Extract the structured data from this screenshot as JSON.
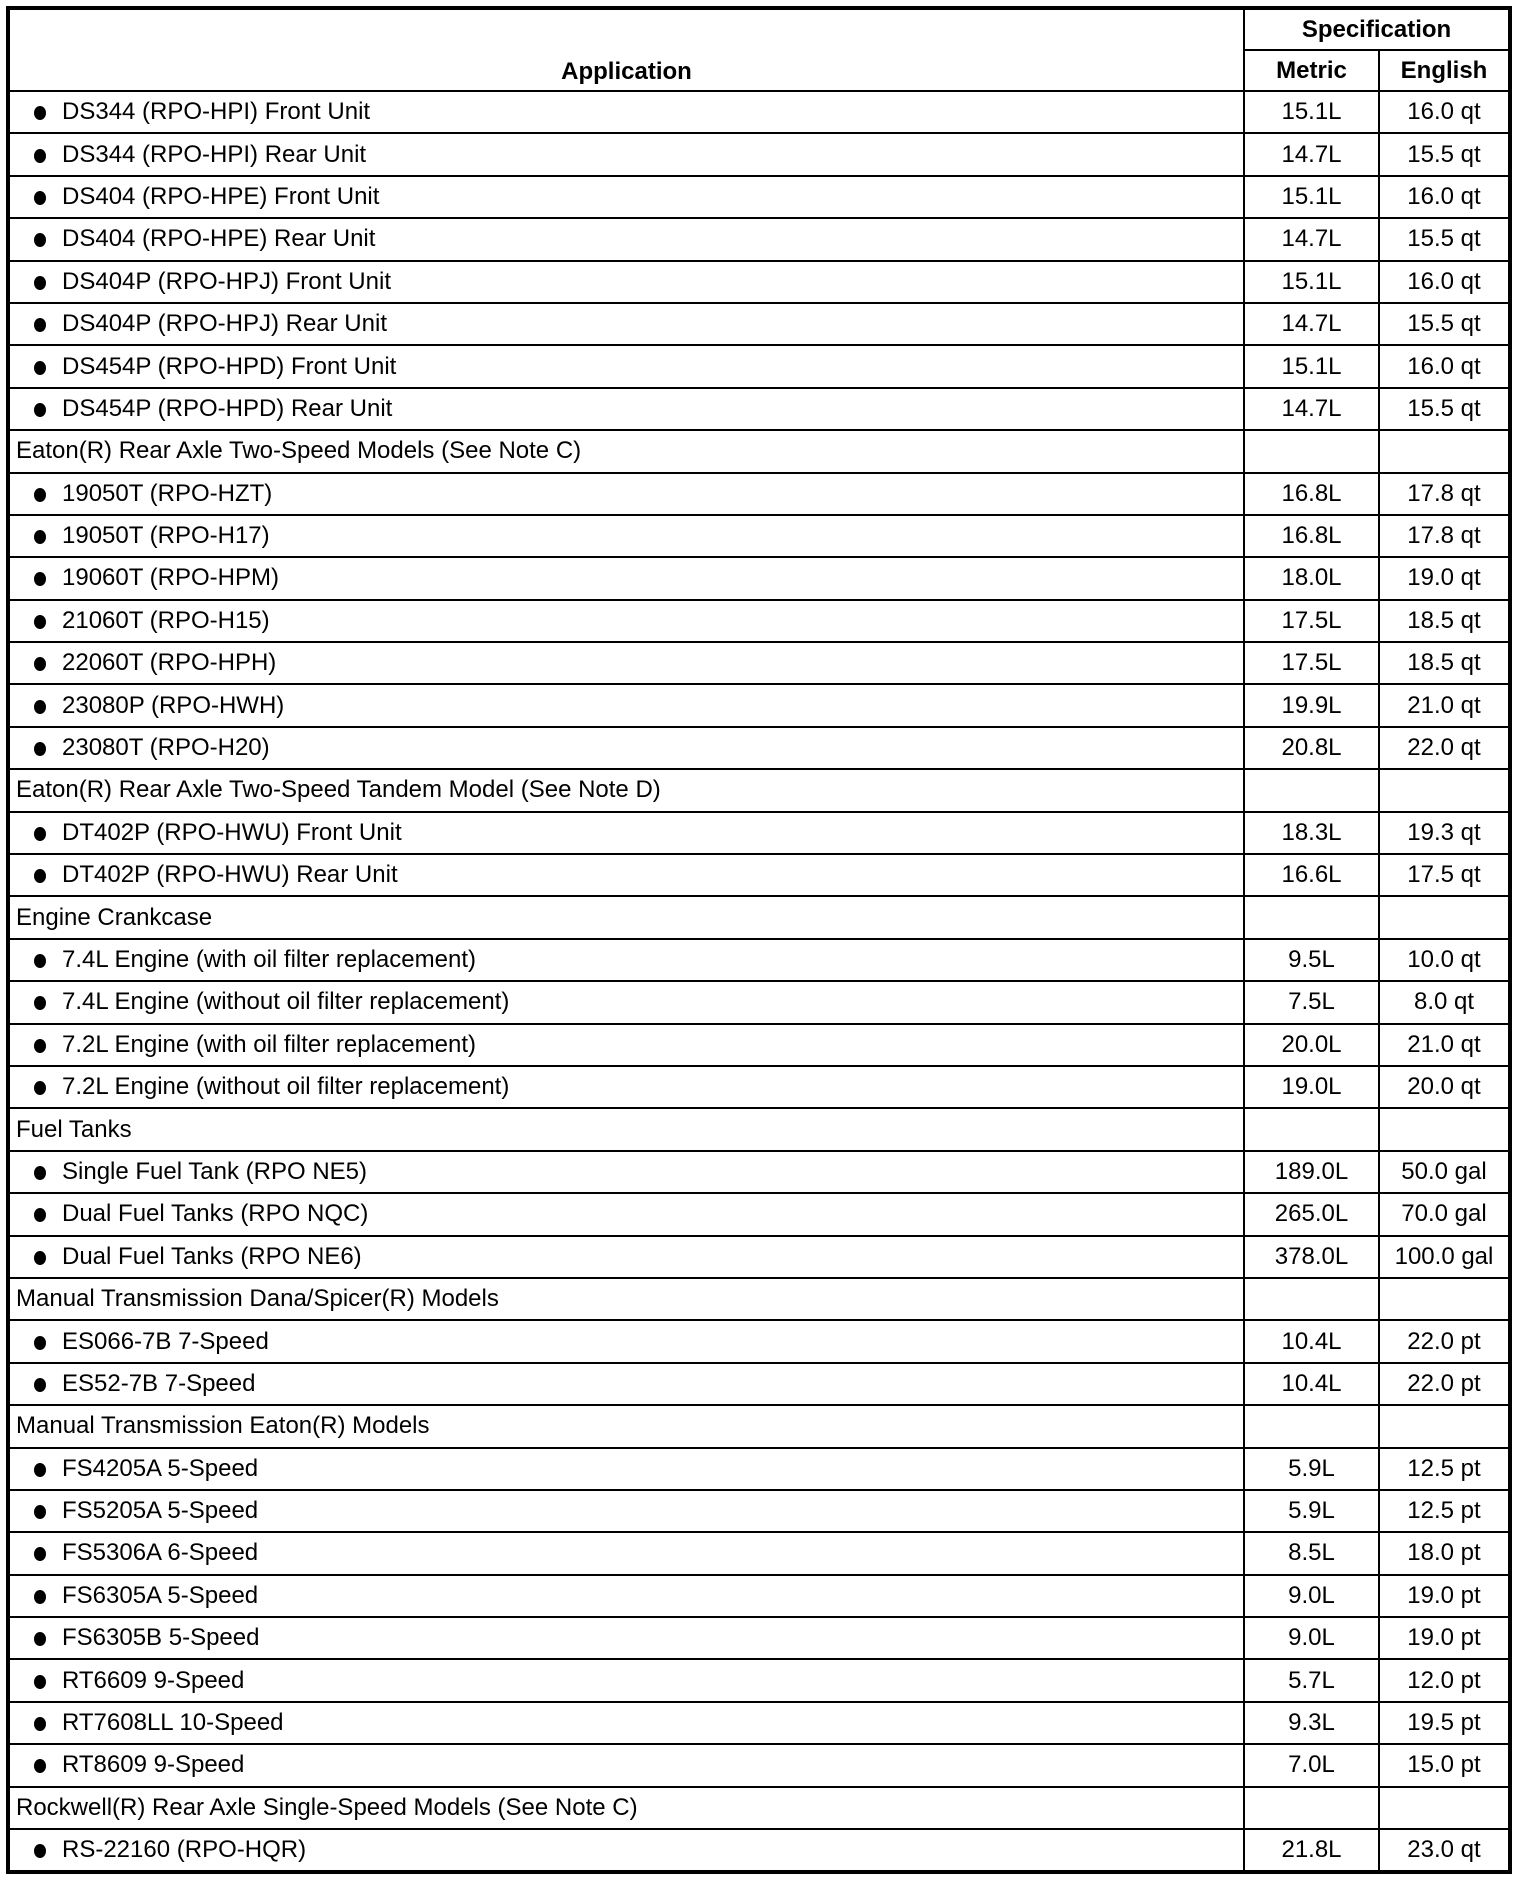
{
  "header": {
    "application": "Application",
    "specification": "Specification",
    "metric": "Metric",
    "english": "English"
  },
  "rows": [
    {
      "type": "item",
      "application": "DS344 (RPO-HPI) Front Unit",
      "metric": "15.1L",
      "english": "16.0 qt"
    },
    {
      "type": "item",
      "application": "DS344 (RPO-HPI) Rear Unit",
      "metric": "14.7L",
      "english": "15.5 qt"
    },
    {
      "type": "item",
      "application": "DS404 (RPO-HPE) Front Unit",
      "metric": "15.1L",
      "english": "16.0 qt"
    },
    {
      "type": "item",
      "application": "DS404 (RPO-HPE) Rear Unit",
      "metric": "14.7L",
      "english": "15.5 qt"
    },
    {
      "type": "item",
      "application": "DS404P (RPO-HPJ) Front Unit",
      "metric": "15.1L",
      "english": "16.0 qt"
    },
    {
      "type": "item",
      "application": "DS404P (RPO-HPJ) Rear Unit",
      "metric": "14.7L",
      "english": "15.5 qt"
    },
    {
      "type": "item",
      "application": "DS454P (RPO-HPD) Front Unit",
      "metric": "15.1L",
      "english": "16.0 qt"
    },
    {
      "type": "item",
      "application": "DS454P (RPO-HPD) Rear Unit",
      "metric": "14.7L",
      "english": "15.5 qt"
    },
    {
      "type": "section",
      "application": "Eaton(R) Rear Axle Two-Speed Models (See Note C)",
      "metric": "",
      "english": ""
    },
    {
      "type": "item",
      "application": "19050T (RPO-HZT)",
      "metric": "16.8L",
      "english": "17.8 qt"
    },
    {
      "type": "item",
      "application": "19050T (RPO-H17)",
      "metric": "16.8L",
      "english": "17.8 qt"
    },
    {
      "type": "item",
      "application": "19060T (RPO-HPM)",
      "metric": "18.0L",
      "english": "19.0 qt"
    },
    {
      "type": "item",
      "application": "21060T (RPO-H15)",
      "metric": "17.5L",
      "english": "18.5 qt"
    },
    {
      "type": "item",
      "application": "22060T (RPO-HPH)",
      "metric": "17.5L",
      "english": "18.5 qt"
    },
    {
      "type": "item",
      "application": "23080P (RPO-HWH)",
      "metric": "19.9L",
      "english": "21.0 qt"
    },
    {
      "type": "item",
      "application": "23080T (RPO-H20)",
      "metric": "20.8L",
      "english": "22.0 qt"
    },
    {
      "type": "section",
      "application": "Eaton(R) Rear Axle Two-Speed Tandem Model (See Note D)",
      "metric": "",
      "english": ""
    },
    {
      "type": "item",
      "application": "DT402P (RPO-HWU) Front Unit",
      "metric": "18.3L",
      "english": "19.3 qt"
    },
    {
      "type": "item",
      "application": "DT402P (RPO-HWU) Rear Unit",
      "metric": "16.6L",
      "english": "17.5 qt"
    },
    {
      "type": "section",
      "application": "Engine Crankcase",
      "metric": "",
      "english": ""
    },
    {
      "type": "item",
      "application": "7.4L Engine (with oil filter replacement)",
      "metric": "9.5L",
      "english": "10.0 qt"
    },
    {
      "type": "item",
      "application": "7.4L Engine (without oil filter replacement)",
      "metric": "7.5L",
      "english": "8.0 qt"
    },
    {
      "type": "item",
      "application": "7.2L Engine (with oil filter replacement)",
      "metric": "20.0L",
      "english": "21.0 qt"
    },
    {
      "type": "item",
      "application": "7.2L Engine (without oil filter replacement)",
      "metric": "19.0L",
      "english": "20.0 qt"
    },
    {
      "type": "section",
      "application": "Fuel Tanks",
      "metric": "",
      "english": ""
    },
    {
      "type": "item",
      "application": "Single Fuel Tank (RPO NE5)",
      "metric": "189.0L",
      "english": "50.0 gal"
    },
    {
      "type": "item",
      "application": "Dual Fuel Tanks (RPO NQC)",
      "metric": "265.0L",
      "english": "70.0 gal"
    },
    {
      "type": "item",
      "application": "Dual Fuel Tanks (RPO NE6)",
      "metric": "378.0L",
      "english": "100.0 gal"
    },
    {
      "type": "section",
      "application": "Manual Transmission Dana/Spicer(R) Models",
      "metric": "",
      "english": ""
    },
    {
      "type": "item",
      "application": "ES066-7B 7-Speed",
      "metric": "10.4L",
      "english": "22.0 pt"
    },
    {
      "type": "item",
      "application": "ES52-7B 7-Speed",
      "metric": "10.4L",
      "english": "22.0 pt"
    },
    {
      "type": "section",
      "application": "Manual Transmission Eaton(R) Models",
      "metric": "",
      "english": ""
    },
    {
      "type": "item",
      "application": "FS4205A 5-Speed",
      "metric": "5.9L",
      "english": "12.5 pt"
    },
    {
      "type": "item",
      "application": "FS5205A 5-Speed",
      "metric": "5.9L",
      "english": "12.5 pt"
    },
    {
      "type": "item",
      "application": "FS5306A 6-Speed",
      "metric": "8.5L",
      "english": "18.0 pt"
    },
    {
      "type": "item",
      "application": "FS6305A 5-Speed",
      "metric": "9.0L",
      "english": "19.0 pt"
    },
    {
      "type": "item",
      "application": "FS6305B 5-Speed",
      "metric": "9.0L",
      "english": "19.0 pt"
    },
    {
      "type": "item",
      "application": "RT6609 9-Speed",
      "metric": "5.7L",
      "english": "12.0 pt"
    },
    {
      "type": "item",
      "application": "RT7608LL 10-Speed",
      "metric": "9.3L",
      "english": "19.5 pt"
    },
    {
      "type": "item",
      "application": "RT8609 9-Speed",
      "metric": "7.0L",
      "english": "15.0 pt"
    },
    {
      "type": "section",
      "application": "Rockwell(R) Rear Axle Single-Speed Models (See Note C)",
      "metric": "",
      "english": ""
    },
    {
      "type": "item",
      "application": "RS-22160 (RPO-HQR)",
      "metric": "21.8L",
      "english": "23.0 qt"
    }
  ]
}
